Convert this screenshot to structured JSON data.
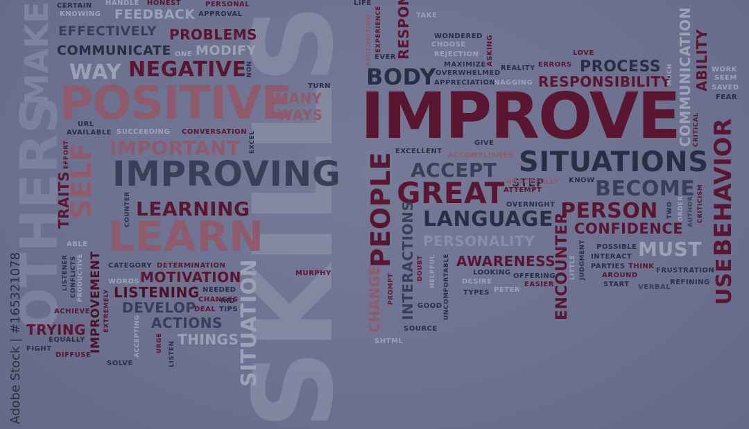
{
  "image": {
    "watermark": "Adobe Stock | #165321078",
    "background_color": "#6d7290",
    "word_colors": [
      "#5a1530",
      "#3a3f57",
      "#8e5a6c",
      "#898ea8"
    ],
    "words": {
      "skills": "SKILLS",
      "improve": "IMPROVE",
      "positive": "POSITIVE",
      "others": "OTHERS",
      "improving": "IMPROVING",
      "learn": "LEARN",
      "situations": "SITUATIONS",
      "great": "GREAT",
      "negative": "NEGATIVE",
      "language": "LANGUAGE",
      "people": "PEOPLE",
      "body": "BODY",
      "accept": "ACCEPT",
      "become": "BECOME",
      "person": "PERSON",
      "behavior": "BEHAVIOR",
      "learning": "LEARNING",
      "important": "IMPORTANT",
      "self": "SELF",
      "situation": "SITUATION",
      "make": "MAKE",
      "way": "WAY",
      "process": "PROCESS",
      "responsibility": "RESPONSIBILITY",
      "confidence": "CONFIDENCE",
      "must": "MUST",
      "use": "USE",
      "awareness": "AWARENESS",
      "personality": "PERSONALITY",
      "motivation": "MOTIVATION",
      "listening": "LISTENING",
      "develop": "DEVELOP",
      "actions": "ACTIONS",
      "trying": "TRYING",
      "things": "THINGS",
      "problems": "PROBLEMS",
      "communicate": "COMMUNICATE",
      "effectively": "EFFECTIVELY",
      "modify": "MODIFY",
      "feedback": "FEEDBACK",
      "many": "MANY",
      "ways": "WAYS",
      "encounter": "ENCOUNTER",
      "interactions": "INTERACTIONS",
      "change": "CHANGE",
      "communication": "COMMUNICATION",
      "ability": "ABILITY",
      "respond": "RESPOND",
      "traits": "TRAITS",
      "improvement": "IMPROVEMENT",
      "step": "STEP",
      "certain": "CERTAIN",
      "handle": "HANDLE",
      "honest": "HONEST",
      "personal": "PERSONAL",
      "knowing": "KNOWING",
      "approval": "APPROVAL",
      "life": "LIFE",
      "take": "TAKE",
      "one": "ONE",
      "non": "NON",
      "turn": "TURN",
      "apologizing": "APOLOGIZING",
      "experience": "EXPERIENCE",
      "ever": "EVER",
      "wondered": "WONDERED",
      "choose": "CHOOSE",
      "rejection": "REJECTION",
      "asking": "ASKING",
      "maximize": "MAXIMIZE",
      "overwhelmed": "OVERWHELMED",
      "nagging": "NAGGING",
      "appreciation": "APPRECIATION",
      "reality": "REALITY",
      "errors": "ERRORS",
      "love": "LOVE",
      "much": "MUCH",
      "work": "WORK",
      "seem": "SEEM",
      "saved": "SAVED",
      "fear": "FEAR",
      "critical": "CRITICAL",
      "url": "URL",
      "available": "AVAILABLE",
      "succeeding": "SUCCEEDING",
      "conversation": "CONVERSATION",
      "effort": "EFFORT",
      "excel": "EXCEL",
      "excellent": "EXCELLENT",
      "accomplished": "ACCOMPLISHED",
      "give": "GIVE",
      "gracefully": "GRACEFULLY",
      "attempt": "ATTEMPT",
      "know": "KNOW",
      "overnight": "OVERNIGHT",
      "two": "TWO",
      "order": "ORDER",
      "author": "AUTHOR",
      "criticism": "CRITICISM",
      "counter": "COUNTER",
      "able": "ABLE",
      "listener": "LISTENER",
      "conflicts": "CONFLICTS",
      "productive": "PRODUCTIVE",
      "category": "CATEGORY",
      "determination": "DETERMINATION",
      "words": "WORDS",
      "needed": "NEEDED",
      "changes": "CHANGES",
      "achieve": "ACHIEVE",
      "extremely": "EXTREMELY",
      "deal": "DEAL",
      "tips": "TIPS",
      "rid": "RID",
      "equally": "EQUALLY",
      "fight": "FIGHT",
      "diffuse": "DIFFUSE",
      "urge": "URGE",
      "accepting": "ACCEPTING",
      "listen": "LISTEN",
      "solve": "SOLVE",
      "murphy": "MURPHY",
      "prompt": "PROMPT",
      "doubt": "DOUBT",
      "helpful": "HELPFUL",
      "uncomfortable": "UNCOMFORTABLE",
      "desire": "DESIRE",
      "looking": "LOOKING",
      "offering": "OFFERING",
      "easier": "EASIER",
      "types": "TYPES",
      "peter": "PETER",
      "good": "GOOD",
      "source": "SOURCE",
      "shtml": "SHTML",
      "possible": "POSSIBLE",
      "interact": "INTERACT",
      "parties": "PARTIES",
      "think": "THINK",
      "around": "AROUND",
      "start": "START",
      "verbal": "VERBAL",
      "refining": "REFINING",
      "frustration": "FRUSTRATION",
      "little": "LITTLE",
      "judgment": "JUDGMENT"
    }
  }
}
